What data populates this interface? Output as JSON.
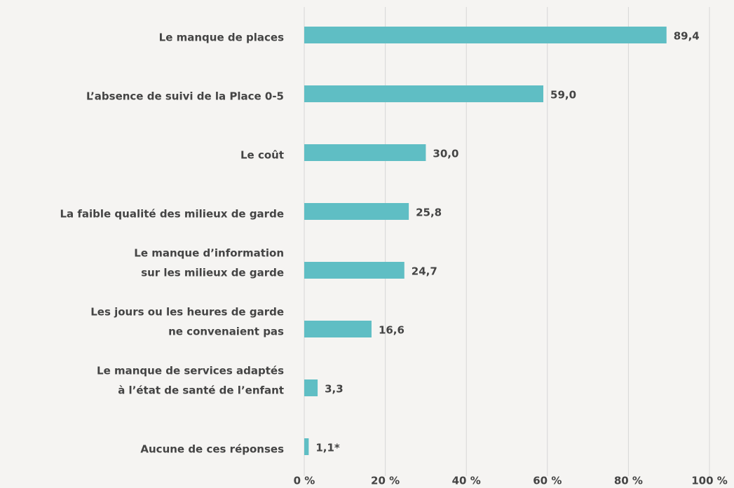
{
  "chart_data": {
    "type": "bar",
    "orientation": "horizontal",
    "categories": [
      [
        "Le manque de places"
      ],
      [
        "L’absence de suivi de la Place 0-5"
      ],
      [
        "Le coût"
      ],
      [
        "La faible qualité des milieux de garde"
      ],
      [
        "Le manque d’information",
        "sur les milieux de garde"
      ],
      [
        "Les jours ou les heures de garde",
        "ne convenaient pas"
      ],
      [
        "Le manque de services adaptés",
        "à l’état de santé de l’enfant"
      ],
      [
        "Aucune de ces réponses"
      ]
    ],
    "values": [
      89.4,
      59.0,
      30.0,
      25.8,
      24.7,
      16.6,
      3.3,
      1.1
    ],
    "value_labels": [
      "89,4",
      "59,0",
      "30,0",
      "25,8",
      "24,7",
      "16,6",
      "3,3",
      "1,1*"
    ],
    "color": "#5fbec4",
    "xlim": [
      0,
      100
    ],
    "xticks": [
      {
        "value": 0,
        "label": "0 %"
      },
      {
        "value": 20,
        "label": "20 %"
      },
      {
        "value": 40,
        "label": "40 %"
      },
      {
        "value": 60,
        "label": "60 %"
      },
      {
        "value": 80,
        "label": "80 %"
      },
      {
        "value": 100,
        "label": "100 %"
      }
    ],
    "grid": true
  }
}
